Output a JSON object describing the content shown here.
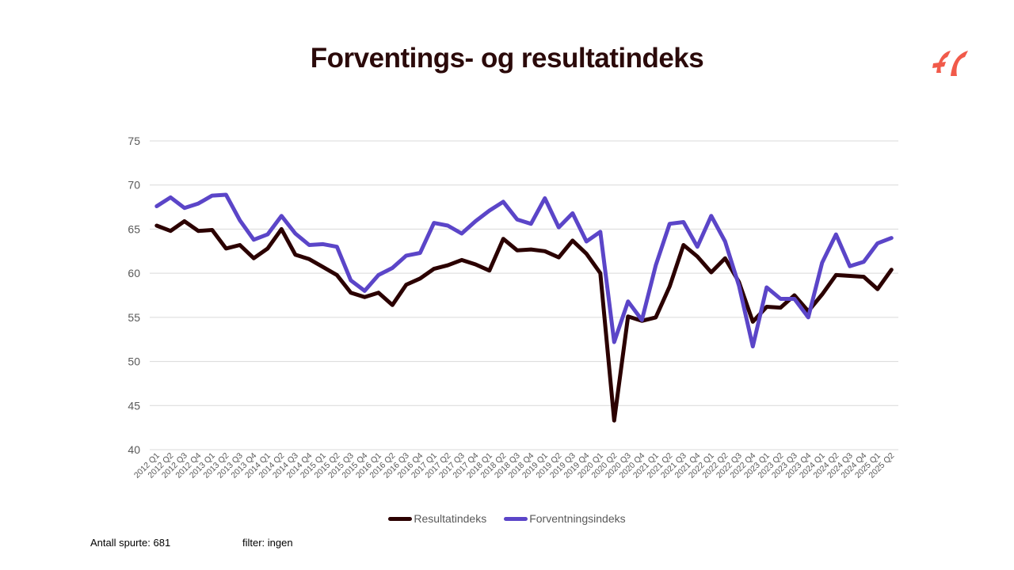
{
  "header": {
    "title": "Forventings- og resultatindeks"
  },
  "logo": {
    "icon": "brand-stripes-icon",
    "color": "#f15a4a"
  },
  "footer": {
    "respondents": "Antall spurte: 681",
    "filter": "filter: ingen"
  },
  "chart_data": {
    "type": "line",
    "title": "Forventings- og resultatindeks",
    "xlabel": "",
    "ylabel": "",
    "ylim": [
      40,
      75
    ],
    "yticks": [
      40,
      45,
      50,
      55,
      60,
      65,
      70,
      75
    ],
    "grid": true,
    "legend_position": "bottom",
    "categories": [
      "2012 Q1",
      "2012 Q2",
      "2012 Q3",
      "2012 Q4",
      "2013 Q1",
      "2013 Q2",
      "2013 Q3",
      "2013 Q4",
      "2014 Q1",
      "2014 Q2",
      "2014 Q3",
      "2014 Q4",
      "2015 Q1",
      "2015 Q2",
      "2015 Q3",
      "2015 Q4",
      "2016 Q1",
      "2016 Q2",
      "2016 Q3",
      "2016 Q4",
      "2017 Q1",
      "2017 Q2",
      "2017 Q3",
      "2017 Q4",
      "2018 Q1",
      "2018 Q2",
      "2018 Q3",
      "2018 Q4",
      "2019 Q1",
      "2019 Q2",
      "2019 Q3",
      "2019 Q4",
      "2020 Q1",
      "2020 Q2",
      "2020 Q3",
      "2020 Q4",
      "2021 Q1",
      "2021 Q2",
      "2021 Q3",
      "2021 Q4",
      "2022 Q1",
      "2022 Q2",
      "2022 Q3",
      "2022 Q4",
      "2023 Q1",
      "2023 Q2",
      "2023 Q3",
      "2023 Q4",
      "2024 Q1",
      "2024 Q2",
      "2024 Q3",
      "2024 Q4",
      "2025 Q1",
      "2025 Q2"
    ],
    "series": [
      {
        "name": "Resultatindeks",
        "color": "#2b0000",
        "values": [
          65.4,
          64.8,
          65.9,
          64.8,
          64.9,
          62.8,
          63.2,
          61.7,
          62.8,
          65.0,
          62.1,
          61.6,
          60.7,
          59.8,
          57.8,
          57.3,
          57.8,
          56.4,
          58.7,
          59.4,
          60.5,
          60.9,
          61.5,
          61.0,
          60.3,
          63.9,
          62.6,
          62.7,
          62.5,
          61.8,
          63.7,
          62.2,
          60.0,
          43.3,
          55.1,
          54.6,
          55.0,
          58.5,
          63.2,
          61.9,
          60.1,
          61.7,
          59.0,
          54.5,
          56.2,
          56.1,
          57.5,
          55.7,
          57.6,
          59.8,
          59.7,
          59.6,
          58.2,
          60.4
        ]
      },
      {
        "name": "Forventningsindeks",
        "color": "#5b45c8",
        "values": [
          67.6,
          68.6,
          67.4,
          67.9,
          68.8,
          68.9,
          66.0,
          63.8,
          64.4,
          66.5,
          64.5,
          63.2,
          63.3,
          63.0,
          59.2,
          58.0,
          59.8,
          60.6,
          62.0,
          62.3,
          65.7,
          65.4,
          64.5,
          65.9,
          67.1,
          68.1,
          66.1,
          65.6,
          68.5,
          65.2,
          66.8,
          63.6,
          64.7,
          52.2,
          56.8,
          54.7,
          60.9,
          65.6,
          65.8,
          63.0,
          66.5,
          63.6,
          58.6,
          51.7,
          58.4,
          57.1,
          57.1,
          55.0,
          61.2,
          64.4,
          60.8,
          61.3,
          63.4,
          64.0
        ]
      }
    ]
  }
}
